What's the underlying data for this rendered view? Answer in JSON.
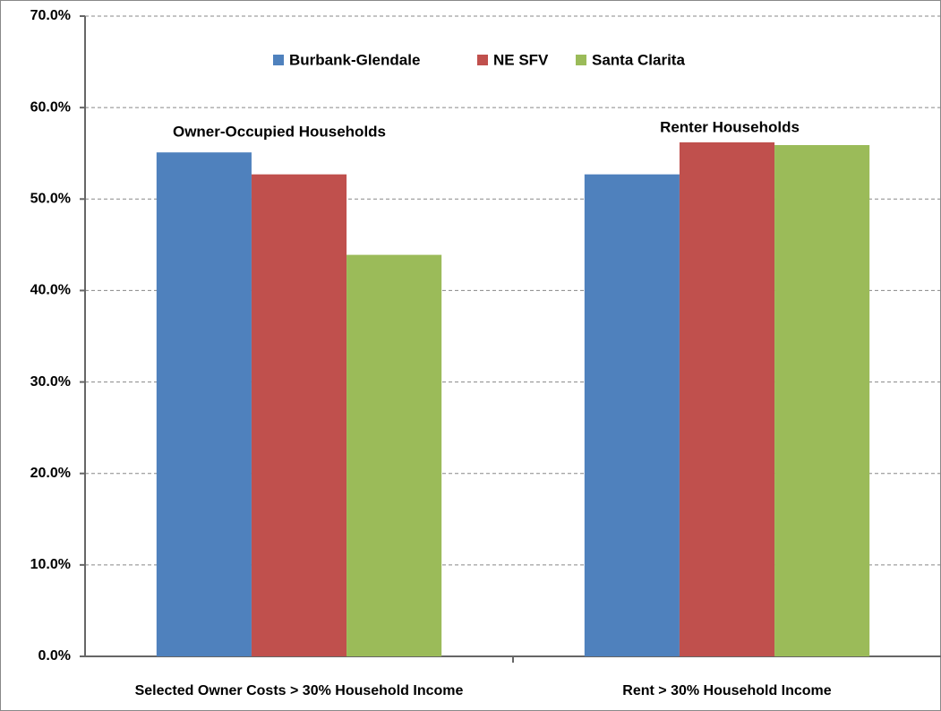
{
  "chart_data": {
    "type": "bar",
    "categories": [
      "Selected Owner Costs  > 30% Household Income",
      "Rent > 30% Household Income"
    ],
    "series": [
      {
        "name": "Burbank-Glendale",
        "color": "#4f81bd",
        "values": [
          55.1,
          52.7
        ]
      },
      {
        "name": "NE SFV",
        "color": "#c0504d",
        "values": [
          52.7,
          56.2
        ]
      },
      {
        "name": "Santa Clarita",
        "color": "#9bbb59",
        "values": [
          43.9,
          55.9
        ]
      }
    ],
    "annotations": [
      "Owner-Occupied Households",
      "Renter Households"
    ],
    "ylim": [
      0,
      70
    ],
    "yticks": [
      {
        "value": 0,
        "label": "0.0%"
      },
      {
        "value": 10,
        "label": "10.0%"
      },
      {
        "value": 20,
        "label": "20.0%"
      },
      {
        "value": 30,
        "label": "30.0%"
      },
      {
        "value": 40,
        "label": "40.0%"
      },
      {
        "value": 50,
        "label": "50.0%"
      },
      {
        "value": 60,
        "label": "60.0%"
      },
      {
        "value": 70,
        "label": "70.0%"
      }
    ],
    "grid": true,
    "legend": "top"
  }
}
